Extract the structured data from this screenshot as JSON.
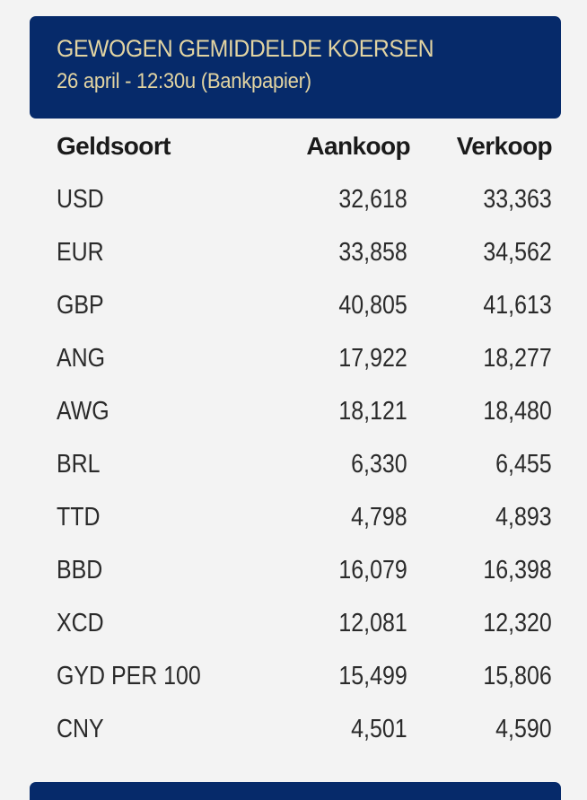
{
  "panel": {
    "title": "GEWOGEN GEMIDDELDE KOERSEN",
    "subtitle": "26 april - 12:30u (Bankpapier)"
  },
  "table": {
    "columns": [
      "Geldsoort",
      "Aankoop",
      "Verkoop"
    ],
    "rows": [
      {
        "currency": "USD",
        "buy": "32,618",
        "sell": "33,363"
      },
      {
        "currency": "EUR",
        "buy": "33,858",
        "sell": "34,562"
      },
      {
        "currency": "GBP",
        "buy": "40,805",
        "sell": "41,613"
      },
      {
        "currency": "ANG",
        "buy": "17,922",
        "sell": "18,277"
      },
      {
        "currency": "AWG",
        "buy": "18,121",
        "sell": "18,480"
      },
      {
        "currency": "BRL",
        "buy": "6,330",
        "sell": "6,455"
      },
      {
        "currency": "TTD",
        "buy": "4,798",
        "sell": "4,893"
      },
      {
        "currency": "BBD",
        "buy": "16,079",
        "sell": "16,398"
      },
      {
        "currency": "XCD",
        "buy": "12,081",
        "sell": "12,320"
      },
      {
        "currency": "GYD PER 100",
        "buy": "15,499",
        "sell": "15,806"
      },
      {
        "currency": "CNY",
        "buy": "4,501",
        "sell": "4,590"
      }
    ]
  },
  "colors": {
    "header_background": "#062a6a",
    "header_text": "#e2d4a2",
    "page_background": "#f3f3f3",
    "table_text": "#2a2a2a"
  }
}
